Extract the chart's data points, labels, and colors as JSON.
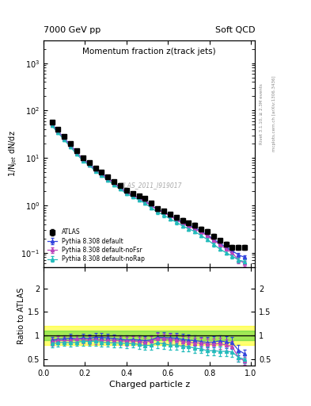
{
  "title_top_left": "7000 GeV pp",
  "title_top_right": "Soft QCD",
  "plot_title": "Momentum fraction z(track jets)",
  "ylabel_main": "1/N$_{jet}$ dN/dz",
  "ylabel_ratio": "Ratio to ATLAS",
  "xlabel": "Charged particle z",
  "watermark": "ATLAS_2011_I919017",
  "rivet_label": "Rivet 3.1.10, ≥ 2.3M events",
  "arxiv_label": "mcplots.cern.ch [arXiv:1306.3436]",
  "atlas_z": [
    0.04,
    0.07,
    0.1,
    0.13,
    0.16,
    0.19,
    0.22,
    0.25,
    0.28,
    0.31,
    0.34,
    0.37,
    0.4,
    0.43,
    0.46,
    0.49,
    0.52,
    0.55,
    0.58,
    0.61,
    0.64,
    0.67,
    0.7,
    0.73,
    0.76,
    0.79,
    0.82,
    0.85,
    0.88,
    0.91,
    0.94,
    0.97
  ],
  "atlas_y": [
    58,
    40,
    28,
    20,
    14,
    10,
    8,
    6,
    5,
    4,
    3.2,
    2.6,
    2.1,
    1.8,
    1.6,
    1.4,
    1.1,
    0.85,
    0.75,
    0.65,
    0.55,
    0.48,
    0.42,
    0.38,
    0.32,
    0.28,
    0.22,
    0.18,
    0.15,
    0.13,
    0.13,
    0.13
  ],
  "atlas_yerr": [
    4,
    3,
    2,
    1.5,
    1,
    0.8,
    0.6,
    0.5,
    0.4,
    0.3,
    0.25,
    0.2,
    0.18,
    0.15,
    0.13,
    0.12,
    0.1,
    0.08,
    0.07,
    0.06,
    0.05,
    0.05,
    0.04,
    0.04,
    0.03,
    0.03,
    0.025,
    0.02,
    0.018,
    0.016,
    0.016,
    0.016
  ],
  "py_default_z": [
    0.04,
    0.07,
    0.1,
    0.13,
    0.16,
    0.19,
    0.22,
    0.25,
    0.28,
    0.31,
    0.34,
    0.37,
    0.4,
    0.43,
    0.46,
    0.49,
    0.52,
    0.55,
    0.58,
    0.61,
    0.64,
    0.67,
    0.7,
    0.73,
    0.76,
    0.79,
    0.82,
    0.85,
    0.88,
    0.91,
    0.94,
    0.97
  ],
  "py_default_y": [
    52,
    37,
    26,
    19,
    13,
    9.5,
    7.5,
    5.8,
    4.8,
    3.8,
    3.0,
    2.4,
    1.9,
    1.65,
    1.45,
    1.25,
    1.0,
    0.82,
    0.72,
    0.62,
    0.52,
    0.44,
    0.38,
    0.34,
    0.28,
    0.24,
    0.19,
    0.16,
    0.13,
    0.11,
    0.09,
    0.08
  ],
  "py_default_yerr": [
    2,
    1.5,
    1,
    0.8,
    0.6,
    0.4,
    0.35,
    0.28,
    0.24,
    0.2,
    0.16,
    0.13,
    0.11,
    0.09,
    0.08,
    0.07,
    0.06,
    0.05,
    0.04,
    0.04,
    0.03,
    0.03,
    0.03,
    0.025,
    0.02,
    0.018,
    0.015,
    0.012,
    0.01,
    0.009,
    0.008,
    0.007
  ],
  "py_nofsr_z": [
    0.04,
    0.07,
    0.1,
    0.13,
    0.16,
    0.19,
    0.22,
    0.25,
    0.28,
    0.31,
    0.34,
    0.37,
    0.4,
    0.43,
    0.46,
    0.49,
    0.52,
    0.55,
    0.58,
    0.61,
    0.64,
    0.67,
    0.7,
    0.73,
    0.76,
    0.79,
    0.82,
    0.85,
    0.88,
    0.91,
    0.94,
    0.97
  ],
  "py_nofsr_y": [
    50,
    36,
    25,
    18,
    13,
    9.2,
    7.2,
    5.5,
    4.5,
    3.6,
    2.9,
    2.3,
    1.85,
    1.6,
    1.4,
    1.2,
    0.98,
    0.8,
    0.7,
    0.6,
    0.5,
    0.42,
    0.36,
    0.32,
    0.27,
    0.23,
    0.18,
    0.15,
    0.12,
    0.1,
    0.07,
    0.06
  ],
  "py_nofsr_yerr": [
    2.5,
    1.8,
    1.2,
    0.9,
    0.65,
    0.45,
    0.38,
    0.3,
    0.25,
    0.22,
    0.18,
    0.14,
    0.12,
    0.1,
    0.09,
    0.08,
    0.07,
    0.055,
    0.05,
    0.045,
    0.035,
    0.032,
    0.028,
    0.025,
    0.022,
    0.019,
    0.016,
    0.013,
    0.011,
    0.01,
    0.009,
    0.008
  ],
  "py_norap_z": [
    0.04,
    0.07,
    0.1,
    0.13,
    0.16,
    0.19,
    0.22,
    0.25,
    0.28,
    0.31,
    0.34,
    0.37,
    0.4,
    0.43,
    0.46,
    0.49,
    0.52,
    0.55,
    0.58,
    0.61,
    0.64,
    0.67,
    0.7,
    0.73,
    0.76,
    0.79,
    0.82,
    0.85,
    0.88,
    0.91,
    0.94,
    0.97
  ],
  "py_norap_y": [
    48,
    34,
    24,
    17,
    12,
    8.8,
    7.0,
    5.3,
    4.3,
    3.4,
    2.7,
    2.2,
    1.75,
    1.5,
    1.3,
    1.1,
    0.88,
    0.72,
    0.62,
    0.52,
    0.44,
    0.37,
    0.32,
    0.28,
    0.23,
    0.19,
    0.15,
    0.12,
    0.1,
    0.085,
    0.07,
    0.065
  ],
  "py_norap_yerr": [
    3,
    2,
    1.3,
    1.0,
    0.7,
    0.5,
    0.4,
    0.32,
    0.27,
    0.22,
    0.18,
    0.15,
    0.12,
    0.1,
    0.09,
    0.08,
    0.07,
    0.06,
    0.05,
    0.045,
    0.038,
    0.032,
    0.028,
    0.024,
    0.02,
    0.017,
    0.014,
    0.011,
    0.01,
    0.009,
    0.008,
    0.007
  ],
  "color_atlas": "#000000",
  "color_default": "#3344dd",
  "color_nofsr": "#bb44bb",
  "color_norap": "#22bbbb",
  "green_band_lo": 0.9,
  "green_band_hi": 1.1,
  "yellow_band_lo": 0.8,
  "yellow_band_hi": 1.2,
  "ylim_main": [
    0.05,
    3000
  ],
  "ylim_ratio": [
    0.37,
    2.45
  ],
  "xlim": [
    0.0,
    1.02
  ],
  "ratio_yticks": [
    0.5,
    1.0,
    1.5,
    2.0
  ]
}
